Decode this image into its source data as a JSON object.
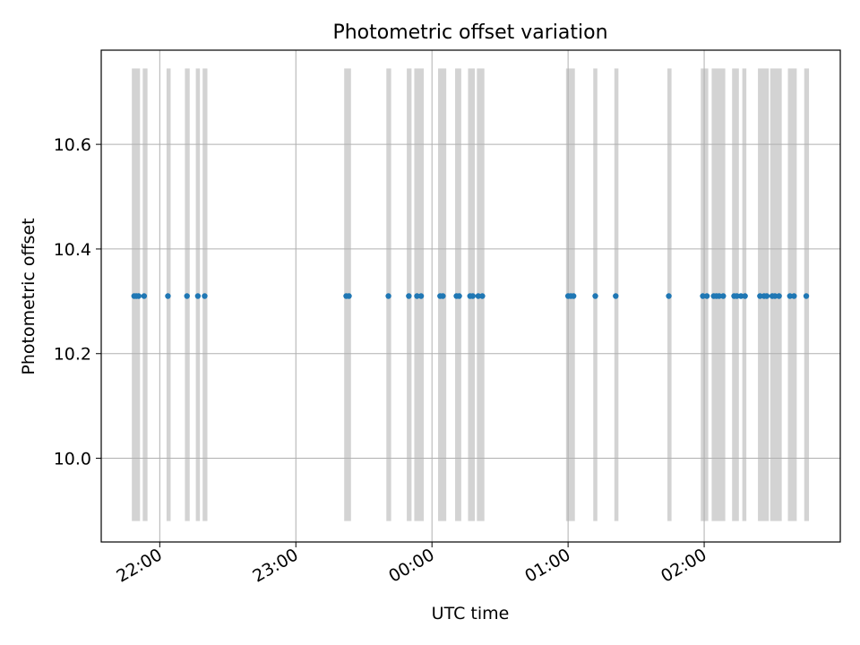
{
  "colors": {
    "point": "#1f77b4",
    "band": "#d3d3d3",
    "grid": "#b0b0b0",
    "axis": "#000000"
  },
  "chart_data": {
    "type": "scatter",
    "title": "Photometric offset variation",
    "xlabel": "UTC time",
    "ylabel": "Photometric offset",
    "x_tick_labels": [
      "22:00",
      "23:00",
      "00:00",
      "01:00",
      "02:00"
    ],
    "x_tick_hours": [
      22,
      23,
      24,
      25,
      26
    ],
    "y_tick_labels": [
      "10.0",
      "10.2",
      "10.4",
      "10.6"
    ],
    "y_ticks": [
      10.0,
      10.2,
      10.4,
      10.6
    ],
    "xlim_hours": [
      21.57,
      27.0
    ],
    "ylim": [
      9.84,
      10.78
    ],
    "band_ylim": [
      9.88,
      10.745
    ],
    "grid": true,
    "x_unit": "hours (UTC); values above 24 are after midnight",
    "series": [
      {
        "x_hours": [
          21.812,
          21.828,
          21.845,
          21.885,
          22.06,
          22.2,
          22.28,
          22.33,
          23.37,
          23.39,
          23.68,
          23.83,
          23.89,
          23.92,
          24.06,
          24.08,
          24.18,
          24.2,
          24.28,
          24.3,
          24.34,
          24.37,
          25.0,
          25.02,
          25.04,
          25.2,
          25.35,
          25.74,
          25.99,
          26.02,
          26.07,
          26.09,
          26.11,
          26.14,
          26.22,
          26.24,
          26.27,
          26.3,
          26.41,
          26.44,
          26.46,
          26.5,
          26.52,
          26.55,
          26.63,
          26.66,
          26.75
        ],
        "y": [
          10.31,
          10.31,
          10.31,
          10.31,
          10.31,
          10.31,
          10.31,
          10.31,
          10.31,
          10.31,
          10.31,
          10.31,
          10.31,
          10.31,
          10.31,
          10.31,
          10.31,
          10.31,
          10.31,
          10.31,
          10.31,
          10.31,
          10.31,
          10.31,
          10.31,
          10.31,
          10.31,
          10.31,
          10.31,
          10.31,
          10.31,
          10.31,
          10.31,
          10.31,
          10.31,
          10.31,
          10.31,
          10.31,
          10.31,
          10.31,
          10.31,
          10.31,
          10.31,
          10.31,
          10.31,
          10.31,
          10.31
        ]
      }
    ],
    "bands_hours": [
      [
        21.795,
        21.855
      ],
      [
        21.875,
        21.91
      ],
      [
        22.05,
        22.08
      ],
      [
        22.185,
        22.22
      ],
      [
        22.265,
        22.295
      ],
      [
        22.315,
        22.35
      ],
      [
        23.355,
        23.405
      ],
      [
        23.665,
        23.7
      ],
      [
        23.815,
        23.85
      ],
      [
        23.87,
        23.94
      ],
      [
        24.045,
        24.105
      ],
      [
        24.17,
        24.215
      ],
      [
        24.265,
        24.315
      ],
      [
        24.33,
        24.385
      ],
      [
        24.985,
        25.05
      ],
      [
        25.185,
        25.215
      ],
      [
        25.34,
        25.37
      ],
      [
        25.73,
        25.76
      ],
      [
        25.975,
        26.03
      ],
      [
        26.055,
        26.155
      ],
      [
        26.205,
        26.255
      ],
      [
        26.28,
        26.31
      ],
      [
        26.395,
        26.475
      ],
      [
        26.485,
        26.57
      ],
      [
        26.615,
        26.68
      ],
      [
        26.735,
        26.77
      ]
    ]
  }
}
